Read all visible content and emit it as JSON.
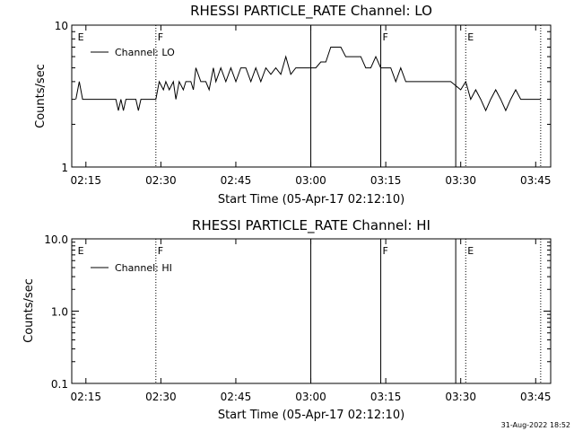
{
  "chart_data": [
    {
      "type": "line",
      "title": "RHESSI PARTICLE_RATE Channel: LO",
      "xlabel": "Start Time (05-Apr-17 02:12:10)",
      "ylabel": "Counts/sec",
      "y_scale": "log",
      "ylim": [
        1,
        10
      ],
      "y_ticks": [
        "1",
        "10"
      ],
      "x_ticks": [
        "02:15",
        "02:30",
        "02:45",
        "03:00",
        "03:15",
        "03:30",
        "03:45"
      ],
      "legend": {
        "label": "Channel: LO",
        "placement": "top-left"
      },
      "markers": [
        {
          "time": "02:13",
          "label": "E",
          "style": "none"
        },
        {
          "time": "02:29",
          "label": "F",
          "style": "dotted"
        },
        {
          "time": "03:00",
          "label": "",
          "style": "solid"
        },
        {
          "time": "03:14",
          "label": "F",
          "style": "solid"
        },
        {
          "time": "03:29",
          "label": "",
          "style": "solid"
        },
        {
          "time": "03:31",
          "label": "E",
          "style": "dotted"
        },
        {
          "time": "03:46",
          "label": "",
          "style": "dotted"
        }
      ],
      "series": [
        {
          "name": "Channel: LO",
          "x": [
            "02:13",
            "02:13:40",
            "02:14:20",
            "02:15",
            "02:17",
            "02:19",
            "02:21",
            "02:21:30",
            "02:22",
            "02:22:30",
            "02:23",
            "02:25",
            "02:25:30",
            "02:26",
            "02:27",
            "02:29",
            "02:29:40",
            "02:30:30",
            "02:31",
            "02:31:40",
            "02:32:30",
            "02:33",
            "02:33:40",
            "02:34:30",
            "02:35",
            "02:36",
            "02:36:30",
            "02:37",
            "02:38",
            "02:39",
            "02:39:40",
            "02:40:30",
            "02:41",
            "02:42",
            "02:43",
            "02:44",
            "02:45",
            "02:46",
            "02:47",
            "02:48",
            "02:49",
            "02:50",
            "02:51",
            "02:52",
            "02:53",
            "02:54",
            "02:55",
            "02:56",
            "02:57",
            "02:58",
            "02:59",
            "03:00",
            "03:01",
            "03:02",
            "03:03",
            "03:04",
            "03:05",
            "03:06",
            "03:07",
            "03:08",
            "03:09",
            "03:10",
            "03:11",
            "03:12",
            "03:13",
            "03:14",
            "03:15",
            "03:16",
            "03:17",
            "03:18",
            "03:19",
            "03:20",
            "03:21",
            "03:22",
            "03:24",
            "03:26",
            "03:28",
            "03:30",
            "03:31",
            "03:32",
            "03:33",
            "03:34",
            "03:35",
            "03:36",
            "03:37",
            "03:38",
            "03:39",
            "03:40",
            "03:41",
            "03:42",
            "03:43",
            "03:44",
            "03:45",
            "03:46"
          ],
          "y": [
            3,
            4,
            3,
            3,
            3,
            3,
            3,
            2.5,
            3,
            2.5,
            3,
            3,
            2.5,
            3,
            3,
            3,
            4,
            3.5,
            4,
            3.5,
            4,
            3,
            4,
            3.5,
            4,
            4,
            3.5,
            5,
            4,
            4,
            3.5,
            5,
            4,
            5,
            4,
            5,
            4,
            5,
            5,
            4,
            5,
            4,
            5,
            4.5,
            5,
            4.5,
            6,
            4.5,
            5,
            5,
            5,
            5,
            5,
            5.5,
            5.5,
            7,
            7,
            7,
            6,
            6,
            6,
            6,
            5,
            5,
            6,
            5,
            5,
            5,
            4,
            5,
            4,
            4,
            4,
            4,
            4,
            4,
            4,
            3.5,
            4,
            3,
            3.5,
            3,
            2.5,
            3,
            3.5,
            3,
            2.5,
            3,
            3.5,
            3,
            3,
            3,
            3,
            3
          ]
        }
      ]
    },
    {
      "type": "line",
      "title": "RHESSI PARTICLE_RATE Channel: HI",
      "xlabel": "Start Time (05-Apr-17 02:12:10)",
      "ylabel": "Counts/sec",
      "y_scale": "log",
      "ylim": [
        0.1,
        10
      ],
      "y_ticks": [
        "0.1",
        "1.0",
        "10.0"
      ],
      "x_ticks": [
        "02:15",
        "02:30",
        "02:45",
        "03:00",
        "03:15",
        "03:30",
        "03:45"
      ],
      "legend": {
        "label": "Channel: HI",
        "placement": "top-left"
      },
      "markers": [
        {
          "time": "02:13",
          "label": "E",
          "style": "none"
        },
        {
          "time": "02:29",
          "label": "F",
          "style": "dotted"
        },
        {
          "time": "03:00",
          "label": "",
          "style": "solid"
        },
        {
          "time": "03:14",
          "label": "F",
          "style": "solid"
        },
        {
          "time": "03:29",
          "label": "",
          "style": "solid"
        },
        {
          "time": "03:31",
          "label": "E",
          "style": "dotted"
        },
        {
          "time": "03:46",
          "label": "",
          "style": "dotted"
        }
      ],
      "series": [
        {
          "name": "Channel: HI",
          "x": [],
          "y": []
        }
      ]
    }
  ],
  "footer": {
    "timestamp": "31-Aug-2022 18:52"
  }
}
